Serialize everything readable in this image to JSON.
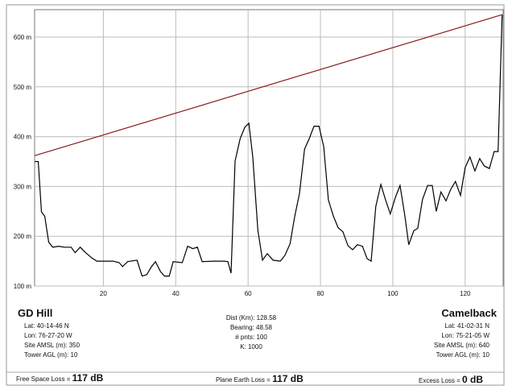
{
  "chart_data": {
    "type": "line",
    "xlim": [
      1,
      130.5
    ],
    "xticks": [
      20,
      40,
      60,
      80,
      100,
      120
    ],
    "ylim": [
      100,
      655
    ],
    "yticks": [
      {
        "value": 100,
        "label": "100 m"
      },
      {
        "value": 200,
        "label": "200 m"
      },
      {
        "value": 300,
        "label": "300 m"
      },
      {
        "value": 400,
        "label": "400 m"
      },
      {
        "value": 500,
        "label": "500 m"
      },
      {
        "value": 600,
        "label": "600 m"
      }
    ],
    "grid": true,
    "series": [
      {
        "color": "#000000",
        "x": [
          1.1,
          2.0,
          2.9,
          3.8,
          4.9,
          6.0,
          7.6,
          9.3,
          11.1,
          12.2,
          13.6,
          15.1,
          16.7,
          18.2,
          20.4,
          22.7,
          24.4,
          25.3,
          26.7,
          29.3,
          30.7,
          32.0,
          33.3,
          34.4,
          35.8,
          36.9,
          38.2,
          39.3,
          41.8,
          43.3,
          44.7,
          46.0,
          47.3,
          50.4,
          53.3,
          54.4,
          55.3,
          56.4,
          57.8,
          59.1,
          60.2,
          61.3,
          62.7,
          64.0,
          65.3,
          66.9,
          68.9,
          70.2,
          71.6,
          72.9,
          74.2,
          75.6,
          76.9,
          78.2,
          79.6,
          80.9,
          82.2,
          83.6,
          84.9,
          86.2,
          87.6,
          88.9,
          90.2,
          91.6,
          92.9,
          94.0,
          95.3,
          96.7,
          98.0,
          99.3,
          100.7,
          102.0,
          103.3,
          104.4,
          105.8,
          106.9,
          108.2,
          109.6,
          110.9,
          112.0,
          113.3,
          114.7,
          116.0,
          117.3,
          118.7,
          120.0,
          121.3,
          122.7,
          124.0,
          125.3,
          126.7,
          128.0,
          129.1,
          130.2
        ],
        "values": [
          350,
          350,
          249,
          240,
          188,
          178,
          180,
          178,
          178,
          167,
          178,
          167,
          157,
          150,
          150,
          150,
          147,
          139,
          149,
          152,
          120,
          123,
          139,
          149,
          129,
          120,
          120,
          149,
          147,
          180,
          175,
          178,
          149,
          150,
          150,
          149,
          126,
          351,
          396,
          419,
          427,
          359,
          212,
          152,
          165,
          152,
          150,
          162,
          185,
          240,
          286,
          375,
          396,
          421,
          421,
          380,
          273,
          240,
          217,
          209,
          181,
          173,
          183,
          180,
          155,
          150,
          260,
          304,
          273,
          245,
          278,
          302,
          242,
          183,
          211,
          216,
          274,
          302,
          302,
          250,
          289,
          271,
          294,
          310,
          282,
          338,
          359,
          331,
          356,
          341,
          336,
          370,
          370,
          645
        ]
      },
      {
        "color": "#8b1a1a",
        "x": [
          1.1,
          130.2
        ],
        "values": [
          362,
          645
        ]
      }
    ]
  },
  "info": {
    "left": {
      "name": "GD Hill",
      "lines": [
        "Lat: 40-14-46 N",
        "Lon: 76-27-20 W",
        "Site AMSL (m): 350",
        "Tower AGL (m): 10"
      ]
    },
    "center": {
      "lines": [
        "Dist (Km): 128.58",
        "Bearing: 48.58",
        "# pnts: 100",
        "K: 1000"
      ]
    },
    "right": {
      "name": "Camelback",
      "lines": [
        "Lat: 41-02-31 N",
        "Lon: 75-21-05 W",
        "Site AMSL (m): 640",
        "Tower AGL (m): 10"
      ]
    },
    "losses": [
      {
        "label": "Free Space Loss =",
        "value": "117 dB"
      },
      {
        "label": "Plane Earth Loss =",
        "value": "117 dB"
      },
      {
        "label": "Excess Loss =",
        "value": "0 dB"
      }
    ]
  }
}
